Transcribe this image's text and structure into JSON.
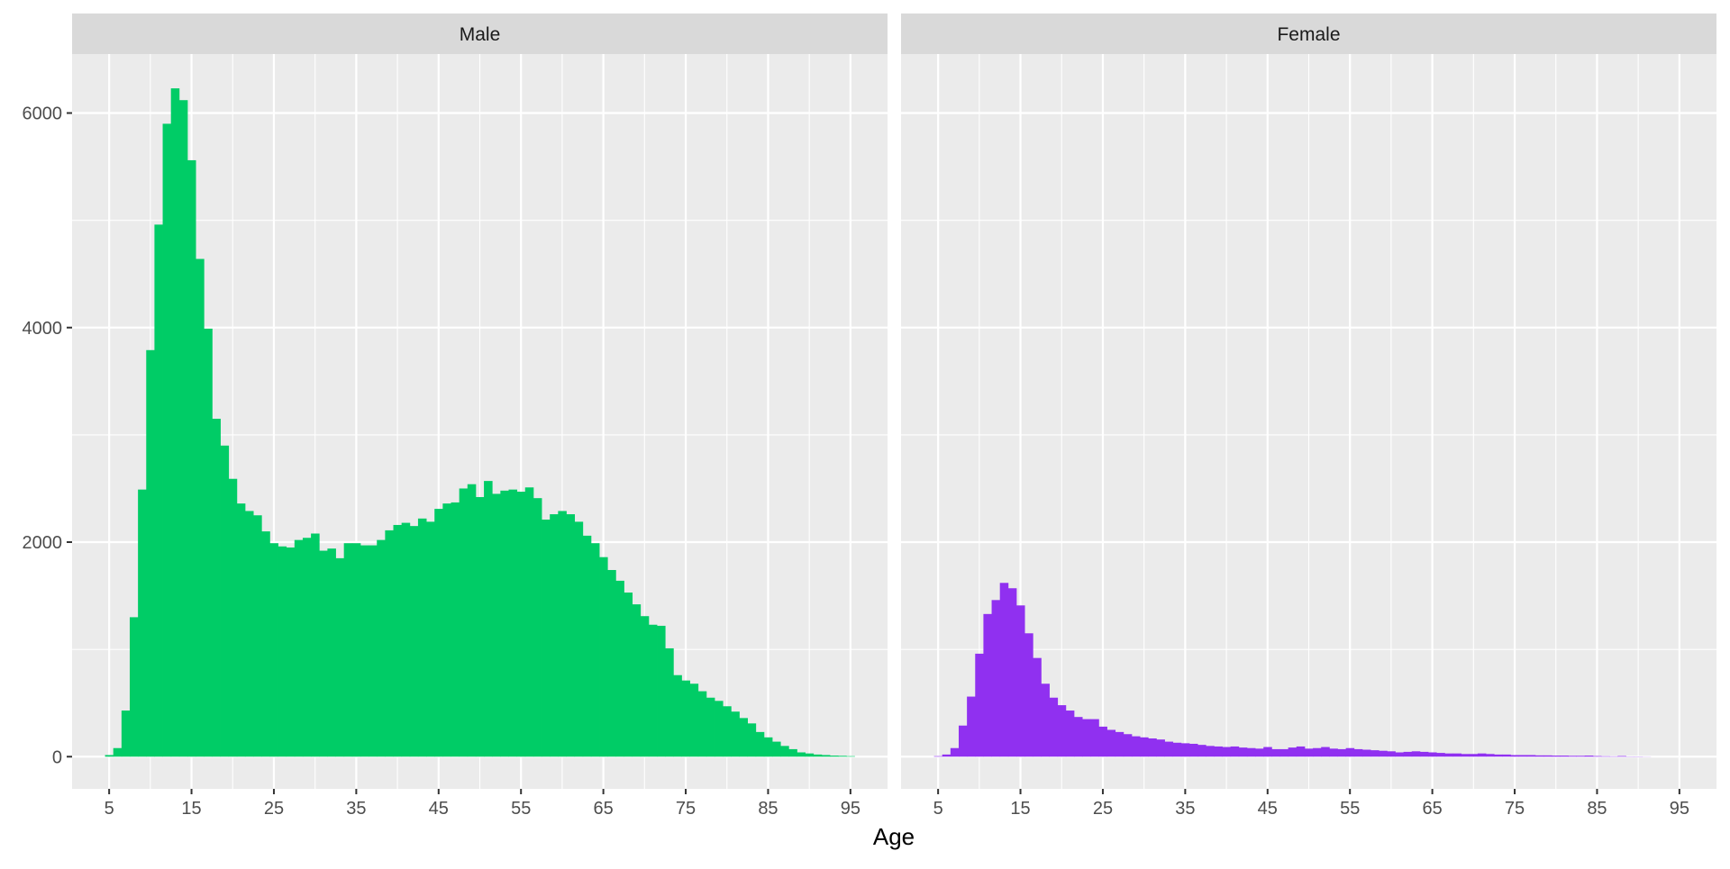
{
  "chart_data": {
    "type": "bar",
    "xlabel": "Age",
    "ylabel": "",
    "ylim": [
      -300,
      6550
    ],
    "xlim": [
      0.5,
      99.5
    ],
    "x_ticks": [
      5,
      15,
      25,
      35,
      45,
      55,
      65,
      75,
      85,
      95
    ],
    "y_ticks": [
      0,
      2000,
      4000,
      6000
    ],
    "bin_width": 1,
    "grid": true,
    "panels": [
      {
        "name": "Male",
        "color": "#00CC66",
        "bins": [
          {
            "x": 5,
            "y": 15
          },
          {
            "x": 6,
            "y": 80
          },
          {
            "x": 7,
            "y": 430
          },
          {
            "x": 8,
            "y": 1300
          },
          {
            "x": 9,
            "y": 2490
          },
          {
            "x": 10,
            "y": 3790
          },
          {
            "x": 11,
            "y": 4960
          },
          {
            "x": 12,
            "y": 5900
          },
          {
            "x": 13,
            "y": 6230
          },
          {
            "x": 14,
            "y": 6120
          },
          {
            "x": 15,
            "y": 5560
          },
          {
            "x": 16,
            "y": 4640
          },
          {
            "x": 17,
            "y": 3990
          },
          {
            "x": 18,
            "y": 3150
          },
          {
            "x": 19,
            "y": 2900
          },
          {
            "x": 20,
            "y": 2590
          },
          {
            "x": 21,
            "y": 2360
          },
          {
            "x": 22,
            "y": 2290
          },
          {
            "x": 23,
            "y": 2250
          },
          {
            "x": 24,
            "y": 2100
          },
          {
            "x": 25,
            "y": 1990
          },
          {
            "x": 26,
            "y": 1960
          },
          {
            "x": 27,
            "y": 1950
          },
          {
            "x": 28,
            "y": 2020
          },
          {
            "x": 29,
            "y": 2040
          },
          {
            "x": 30,
            "y": 2080
          },
          {
            "x": 31,
            "y": 1920
          },
          {
            "x": 32,
            "y": 1940
          },
          {
            "x": 33,
            "y": 1850
          },
          {
            "x": 34,
            "y": 1990
          },
          {
            "x": 35,
            "y": 1990
          },
          {
            "x": 36,
            "y": 1970
          },
          {
            "x": 37,
            "y": 1970
          },
          {
            "x": 38,
            "y": 2020
          },
          {
            "x": 39,
            "y": 2110
          },
          {
            "x": 40,
            "y": 2160
          },
          {
            "x": 41,
            "y": 2180
          },
          {
            "x": 42,
            "y": 2150
          },
          {
            "x": 43,
            "y": 2220
          },
          {
            "x": 44,
            "y": 2190
          },
          {
            "x": 45,
            "y": 2310
          },
          {
            "x": 46,
            "y": 2360
          },
          {
            "x": 47,
            "y": 2370
          },
          {
            "x": 48,
            "y": 2500
          },
          {
            "x": 49,
            "y": 2540
          },
          {
            "x": 50,
            "y": 2420
          },
          {
            "x": 51,
            "y": 2570
          },
          {
            "x": 52,
            "y": 2450
          },
          {
            "x": 53,
            "y": 2480
          },
          {
            "x": 54,
            "y": 2490
          },
          {
            "x": 55,
            "y": 2470
          },
          {
            "x": 56,
            "y": 2510
          },
          {
            "x": 57,
            "y": 2410
          },
          {
            "x": 58,
            "y": 2210
          },
          {
            "x": 59,
            "y": 2260
          },
          {
            "x": 60,
            "y": 2290
          },
          {
            "x": 61,
            "y": 2260
          },
          {
            "x": 62,
            "y": 2190
          },
          {
            "x": 63,
            "y": 2060
          },
          {
            "x": 64,
            "y": 1990
          },
          {
            "x": 65,
            "y": 1860
          },
          {
            "x": 66,
            "y": 1740
          },
          {
            "x": 67,
            "y": 1640
          },
          {
            "x": 68,
            "y": 1530
          },
          {
            "x": 69,
            "y": 1420
          },
          {
            "x": 70,
            "y": 1310
          },
          {
            "x": 71,
            "y": 1230
          },
          {
            "x": 72,
            "y": 1220
          },
          {
            "x": 73,
            "y": 1010
          },
          {
            "x": 74,
            "y": 760
          },
          {
            "x": 75,
            "y": 710
          },
          {
            "x": 76,
            "y": 680
          },
          {
            "x": 77,
            "y": 610
          },
          {
            "x": 78,
            "y": 550
          },
          {
            "x": 79,
            "y": 520
          },
          {
            "x": 80,
            "y": 470
          },
          {
            "x": 81,
            "y": 420
          },
          {
            "x": 82,
            "y": 360
          },
          {
            "x": 83,
            "y": 310
          },
          {
            "x": 84,
            "y": 230
          },
          {
            "x": 85,
            "y": 180
          },
          {
            "x": 86,
            "y": 140
          },
          {
            "x": 87,
            "y": 100
          },
          {
            "x": 88,
            "y": 70
          },
          {
            "x": 89,
            "y": 40
          },
          {
            "x": 90,
            "y": 30
          },
          {
            "x": 91,
            "y": 20
          },
          {
            "x": 92,
            "y": 15
          },
          {
            "x": 93,
            "y": 10
          },
          {
            "x": 94,
            "y": 8
          },
          {
            "x": 95,
            "y": 5
          }
        ]
      },
      {
        "name": "Female",
        "color": "#9030F0",
        "bins": [
          {
            "x": 5,
            "y": 5
          },
          {
            "x": 6,
            "y": 20
          },
          {
            "x": 7,
            "y": 80
          },
          {
            "x": 8,
            "y": 290
          },
          {
            "x": 9,
            "y": 560
          },
          {
            "x": 10,
            "y": 960
          },
          {
            "x": 11,
            "y": 1330
          },
          {
            "x": 12,
            "y": 1460
          },
          {
            "x": 13,
            "y": 1620
          },
          {
            "x": 14,
            "y": 1570
          },
          {
            "x": 15,
            "y": 1410
          },
          {
            "x": 16,
            "y": 1150
          },
          {
            "x": 17,
            "y": 920
          },
          {
            "x": 18,
            "y": 680
          },
          {
            "x": 19,
            "y": 550
          },
          {
            "x": 20,
            "y": 480
          },
          {
            "x": 21,
            "y": 430
          },
          {
            "x": 22,
            "y": 370
          },
          {
            "x": 23,
            "y": 350
          },
          {
            "x": 24,
            "y": 350
          },
          {
            "x": 25,
            "y": 280
          },
          {
            "x": 26,
            "y": 250
          },
          {
            "x": 27,
            "y": 230
          },
          {
            "x": 28,
            "y": 210
          },
          {
            "x": 29,
            "y": 190
          },
          {
            "x": 30,
            "y": 180
          },
          {
            "x": 31,
            "y": 170
          },
          {
            "x": 32,
            "y": 160
          },
          {
            "x": 33,
            "y": 140
          },
          {
            "x": 34,
            "y": 130
          },
          {
            "x": 35,
            "y": 125
          },
          {
            "x": 36,
            "y": 120
          },
          {
            "x": 37,
            "y": 110
          },
          {
            "x": 38,
            "y": 100
          },
          {
            "x": 39,
            "y": 95
          },
          {
            "x": 40,
            "y": 90
          },
          {
            "x": 41,
            "y": 95
          },
          {
            "x": 42,
            "y": 85
          },
          {
            "x": 43,
            "y": 80
          },
          {
            "x": 44,
            "y": 75
          },
          {
            "x": 45,
            "y": 90
          },
          {
            "x": 46,
            "y": 70
          },
          {
            "x": 47,
            "y": 70
          },
          {
            "x": 48,
            "y": 85
          },
          {
            "x": 49,
            "y": 95
          },
          {
            "x": 50,
            "y": 75
          },
          {
            "x": 51,
            "y": 80
          },
          {
            "x": 52,
            "y": 90
          },
          {
            "x": 53,
            "y": 75
          },
          {
            "x": 54,
            "y": 70
          },
          {
            "x": 55,
            "y": 80
          },
          {
            "x": 56,
            "y": 70
          },
          {
            "x": 57,
            "y": 65
          },
          {
            "x": 58,
            "y": 60
          },
          {
            "x": 59,
            "y": 55
          },
          {
            "x": 60,
            "y": 50
          },
          {
            "x": 61,
            "y": 40
          },
          {
            "x": 62,
            "y": 45
          },
          {
            "x": 63,
            "y": 50
          },
          {
            "x": 64,
            "y": 45
          },
          {
            "x": 65,
            "y": 40
          },
          {
            "x": 66,
            "y": 35
          },
          {
            "x": 67,
            "y": 30
          },
          {
            "x": 68,
            "y": 30
          },
          {
            "x": 69,
            "y": 25
          },
          {
            "x": 70,
            "y": 25
          },
          {
            "x": 71,
            "y": 30
          },
          {
            "x": 72,
            "y": 25
          },
          {
            "x": 73,
            "y": 20
          },
          {
            "x": 74,
            "y": 20
          },
          {
            "x": 75,
            "y": 15
          },
          {
            "x": 76,
            "y": 15
          },
          {
            "x": 77,
            "y": 15
          },
          {
            "x": 78,
            "y": 12
          },
          {
            "x": 79,
            "y": 12
          },
          {
            "x": 80,
            "y": 10
          },
          {
            "x": 81,
            "y": 10
          },
          {
            "x": 82,
            "y": 8
          },
          {
            "x": 83,
            "y": 8
          },
          {
            "x": 84,
            "y": 10
          },
          {
            "x": 85,
            "y": 6
          },
          {
            "x": 86,
            "y": 4
          },
          {
            "x": 87,
            "y": 3
          },
          {
            "x": 88,
            "y": 6
          },
          {
            "x": 89,
            "y": 2
          },
          {
            "x": 90,
            "y": 2
          },
          {
            "x": 91,
            "y": 1
          }
        ]
      }
    ]
  }
}
